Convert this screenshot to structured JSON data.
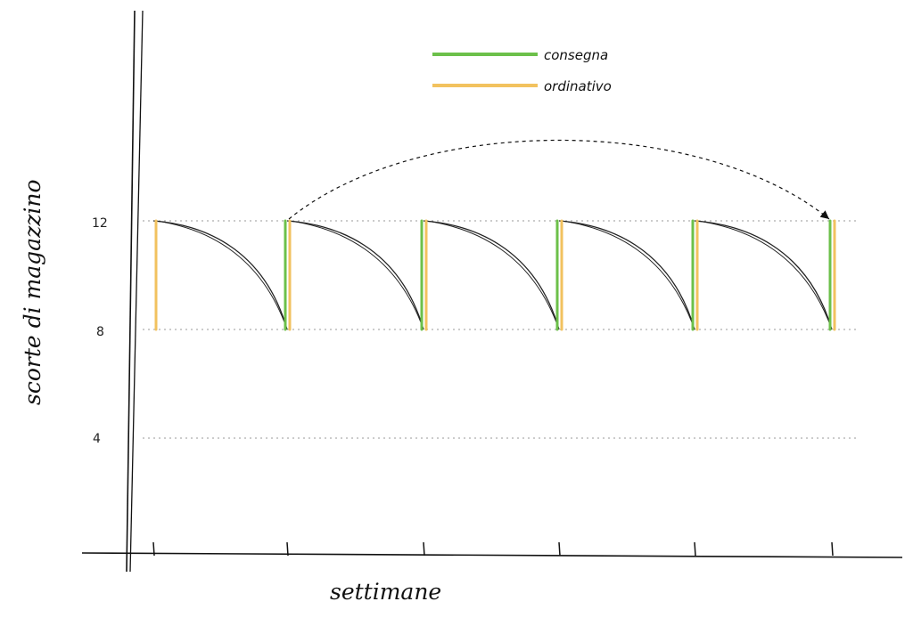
{
  "chart_data": {
    "type": "line",
    "xlabel": "settimane",
    "ylabel": "scorte di magazzino",
    "ylim": [
      0,
      16
    ],
    "xlim": [
      -0.15,
      5.3
    ],
    "y_ticks": [
      4,
      8,
      12
    ],
    "x_ticks": [
      0,
      1,
      2,
      3,
      4,
      5
    ],
    "grid": "dotted horizontal lines at 4, 8, 12",
    "legend_position": "top",
    "colors": {
      "consegna": "#6cc04a",
      "ordinativo": "#f2c25f",
      "axis": "#111111",
      "curve": "#222222",
      "grid": "#9a9a9a"
    },
    "series": [
      {
        "name": "consegna",
        "x": [
          1,
          2,
          3,
          4,
          5
        ],
        "from": 8,
        "to": 12
      },
      {
        "name": "ordinativo",
        "x": [
          0,
          1,
          2,
          3,
          4,
          5
        ],
        "from": 8,
        "to": 12
      }
    ],
    "stock_curve": {
      "start_level": 12,
      "end_level": 8,
      "cycles": [
        [
          0,
          1
        ],
        [
          1,
          2
        ],
        [
          2,
          3
        ],
        [
          3,
          4
        ],
        [
          4,
          5
        ]
      ]
    },
    "annotation_arrow": {
      "from_x": 1,
      "to_x": 5,
      "y": 12,
      "style": "dashed arc"
    }
  },
  "labels": {
    "xlabel": "settimane",
    "ylabel": "scorte di magazzino",
    "tick_12": "12",
    "tick_8": "8",
    "tick_4": "4",
    "legend_consegna": "consegna",
    "legend_ordinativo": "ordinativo"
  }
}
